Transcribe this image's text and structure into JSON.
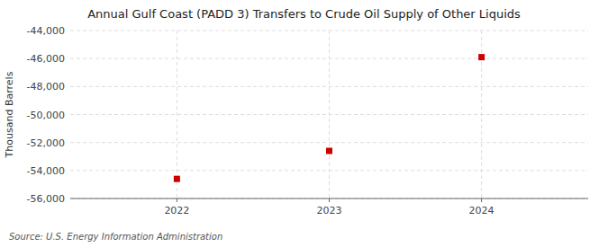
{
  "chart_data": {
    "type": "scatter",
    "title": "Annual Gulf Coast (PADD 3) Transfers to Crude Oil Supply of Other Liquids",
    "y_label": "Thousand Barrels",
    "annotations": [
      "Source: U.S. Energy Information Administration"
    ],
    "x": [
      2022,
      2023,
      2024
    ],
    "values": [
      -54600,
      -52600,
      -45900
    ],
    "color": "#cc0000",
    "marker": "square",
    "xlim": [
      2021.3,
      2024.7
    ],
    "xticks": [
      2022,
      2023,
      2024
    ],
    "ylim": [
      -56000,
      -44000
    ],
    "yticks": [
      {
        "value": -44000,
        "label": "-44,000"
      },
      {
        "value": -46000,
        "label": "-46,000"
      },
      {
        "value": -48000,
        "label": "-48,000"
      },
      {
        "value": -50000,
        "label": "-50,000"
      },
      {
        "value": -52000,
        "label": "-52,000"
      },
      {
        "value": -54000,
        "label": "-54,000"
      },
      {
        "value": -56000,
        "label": "-56,000"
      }
    ],
    "grid": true
  }
}
